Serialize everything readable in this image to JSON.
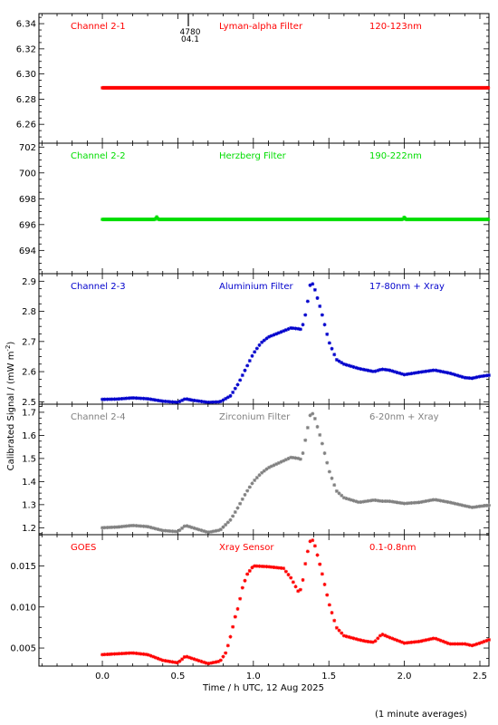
{
  "figure": {
    "xlabel": "Time / h UTC, 12 Aug 2025",
    "ylabel": "Calibrated Signal / (mW m",
    "ylabel_exp": "-2",
    "ylabel_close": ")",
    "note": "(1 minute averages)",
    "marker_number": "4780",
    "marker_time": "04.1"
  },
  "chart_data": [
    {
      "type": "scatter",
      "name": "Channel 2-1",
      "filter": "Lyman-alpha Filter",
      "band": "120-123nm",
      "color": "#ff0000",
      "xlim": [
        -0.42,
        2.56
      ],
      "ylim": [
        6.245,
        6.348
      ],
      "xticks": [
        0.0,
        0.5,
        1.0,
        1.5,
        2.0,
        2.5
      ],
      "xtick_labels": [
        "0.0",
        "0.5",
        "1.0",
        "1.5",
        "2.0",
        "2.5"
      ],
      "yticks": [
        6.26,
        6.28,
        6.3,
        6.32,
        6.34
      ],
      "ytick_labels": [
        "6.26",
        "6.28",
        "6.30",
        "6.32",
        "6.34"
      ],
      "points": [
        [
          0.0,
          6.289
        ],
        [
          2.56,
          6.289
        ]
      ]
    },
    {
      "type": "scatter",
      "name": "Channel 2-2",
      "filter": "Herzberg Filter",
      "band": "190-222nm",
      "color": "#00dd00",
      "xlim": [
        -0.42,
        2.56
      ],
      "ylim": [
        692.2,
        702.3
      ],
      "xticks": [
        0.0,
        0.5,
        1.0,
        1.5,
        2.0,
        2.5
      ],
      "xtick_labels": [
        "0.0",
        "0.5",
        "1.0",
        "1.5",
        "2.0",
        "2.5"
      ],
      "yticks": [
        694,
        696,
        698,
        700,
        702
      ],
      "ytick_labels": [
        "694",
        "696",
        "698",
        "700",
        "702"
      ],
      "points": [
        [
          0.0,
          696.4
        ],
        [
          0.35,
          696.4
        ],
        [
          0.36,
          696.6
        ],
        [
          0.37,
          696.4
        ],
        [
          1.99,
          696.4
        ],
        [
          2.0,
          696.6
        ],
        [
          2.01,
          696.4
        ],
        [
          2.56,
          696.4
        ]
      ]
    },
    {
      "type": "scatter",
      "name": "Channel 2-3",
      "filter": "Aluminium Filter",
      "band": "17-80nm + Xray",
      "color": "#0000cc",
      "xlim": [
        -0.42,
        2.56
      ],
      "ylim": [
        2.492,
        2.925
      ],
      "xticks": [
        0.0,
        0.5,
        1.0,
        1.5,
        2.0,
        2.5
      ],
      "xtick_labels": [
        "0.0",
        "0.5",
        "1.0",
        "1.5",
        "2.0",
        "2.5"
      ],
      "yticks": [
        2.5,
        2.6,
        2.7,
        2.8,
        2.9
      ],
      "ytick_labels": [
        "2.5",
        "2.6",
        "2.7",
        "2.8",
        "2.9"
      ],
      "points": [
        [
          0.0,
          2.508
        ],
        [
          0.1,
          2.509
        ],
        [
          0.2,
          2.513
        ],
        [
          0.3,
          2.51
        ],
        [
          0.4,
          2.502
        ],
        [
          0.5,
          2.498
        ],
        [
          0.55,
          2.51
        ],
        [
          0.6,
          2.505
        ],
        [
          0.7,
          2.498
        ],
        [
          0.78,
          2.5
        ],
        [
          0.85,
          2.52
        ],
        [
          0.9,
          2.56
        ],
        [
          0.95,
          2.61
        ],
        [
          1.0,
          2.66
        ],
        [
          1.05,
          2.695
        ],
        [
          1.1,
          2.715
        ],
        [
          1.2,
          2.735
        ],
        [
          1.25,
          2.745
        ],
        [
          1.3,
          2.742
        ],
        [
          1.32,
          2.74
        ],
        [
          1.35,
          2.8
        ],
        [
          1.38,
          2.9
        ],
        [
          1.4,
          2.885
        ],
        [
          1.45,
          2.8
        ],
        [
          1.5,
          2.7
        ],
        [
          1.55,
          2.64
        ],
        [
          1.6,
          2.625
        ],
        [
          1.7,
          2.61
        ],
        [
          1.8,
          2.6
        ],
        [
          1.85,
          2.608
        ],
        [
          1.9,
          2.605
        ],
        [
          2.0,
          2.59
        ],
        [
          2.1,
          2.598
        ],
        [
          2.2,
          2.605
        ],
        [
          2.3,
          2.595
        ],
        [
          2.4,
          2.58
        ],
        [
          2.45,
          2.578
        ],
        [
          2.5,
          2.584
        ],
        [
          2.56,
          2.588
        ]
      ]
    },
    {
      "type": "scatter",
      "name": "Channel 2-4",
      "filter": "Zirconium Filter",
      "band": "6-20nm + Xray",
      "color": "#808080",
      "xlim": [
        -0.42,
        2.56
      ],
      "ylim": [
        1.17,
        1.735
      ],
      "xticks": [
        0.0,
        0.5,
        1.0,
        1.5,
        2.0,
        2.5
      ],
      "xtick_labels": [
        "0.0",
        "0.5",
        "1.0",
        "1.5",
        "2.0",
        "2.5"
      ],
      "yticks": [
        1.2,
        1.3,
        1.4,
        1.5,
        1.6,
        1.7
      ],
      "ytick_labels": [
        "1.2",
        "1.3",
        "1.4",
        "1.5",
        "1.6",
        "1.7"
      ],
      "points": [
        [
          0.0,
          1.2
        ],
        [
          0.1,
          1.203
        ],
        [
          0.2,
          1.21
        ],
        [
          0.3,
          1.205
        ],
        [
          0.4,
          1.188
        ],
        [
          0.5,
          1.183
        ],
        [
          0.55,
          1.21
        ],
        [
          0.6,
          1.2
        ],
        [
          0.7,
          1.18
        ],
        [
          0.78,
          1.19
        ],
        [
          0.85,
          1.235
        ],
        [
          0.9,
          1.29
        ],
        [
          0.95,
          1.35
        ],
        [
          1.0,
          1.4
        ],
        [
          1.05,
          1.435
        ],
        [
          1.1,
          1.46
        ],
        [
          1.2,
          1.49
        ],
        [
          1.25,
          1.505
        ],
        [
          1.3,
          1.5
        ],
        [
          1.32,
          1.495
        ],
        [
          1.35,
          1.6
        ],
        [
          1.38,
          1.7
        ],
        [
          1.4,
          1.69
        ],
        [
          1.45,
          1.58
        ],
        [
          1.5,
          1.45
        ],
        [
          1.55,
          1.36
        ],
        [
          1.6,
          1.33
        ],
        [
          1.7,
          1.31
        ],
        [
          1.8,
          1.32
        ],
        [
          1.85,
          1.315
        ],
        [
          1.9,
          1.315
        ],
        [
          2.0,
          1.305
        ],
        [
          2.1,
          1.31
        ],
        [
          2.2,
          1.322
        ],
        [
          2.3,
          1.31
        ],
        [
          2.4,
          1.295
        ],
        [
          2.45,
          1.288
        ],
        [
          2.5,
          1.293
        ],
        [
          2.56,
          1.297
        ]
      ]
    },
    {
      "type": "scatter",
      "name": "GOES",
      "filter": "Xray Sensor",
      "band": "0.1-0.8nm",
      "color": "#ff0000",
      "xlim": [
        -0.42,
        2.56
      ],
      "ylim": [
        0.0028,
        0.0188
      ],
      "xticks": [
        0.0,
        0.5,
        1.0,
        1.5,
        2.0,
        2.5
      ],
      "xtick_labels": [
        "0.0",
        "0.5",
        "1.0",
        "1.5",
        "2.0",
        "2.5"
      ],
      "yticks": [
        0.005,
        0.01,
        0.015
      ],
      "ytick_labels": [
        "0.005",
        "0.010",
        "0.015"
      ],
      "points": [
        [
          0.0,
          0.0042
        ],
        [
          0.1,
          0.0043
        ],
        [
          0.2,
          0.0044
        ],
        [
          0.3,
          0.0042
        ],
        [
          0.4,
          0.0035
        ],
        [
          0.5,
          0.0032
        ],
        [
          0.55,
          0.004
        ],
        [
          0.6,
          0.0037
        ],
        [
          0.7,
          0.0031
        ],
        [
          0.78,
          0.0034
        ],
        [
          0.82,
          0.0045
        ],
        [
          0.85,
          0.0065
        ],
        [
          0.88,
          0.0088
        ],
        [
          0.9,
          0.01
        ],
        [
          0.93,
          0.0125
        ],
        [
          0.96,
          0.014
        ],
        [
          1.0,
          0.015
        ],
        [
          1.1,
          0.0149
        ],
        [
          1.2,
          0.0147
        ],
        [
          1.25,
          0.0135
        ],
        [
          1.3,
          0.0118
        ],
        [
          1.32,
          0.0123
        ],
        [
          1.35,
          0.016
        ],
        [
          1.38,
          0.0183
        ],
        [
          1.4,
          0.018
        ],
        [
          1.45,
          0.0145
        ],
        [
          1.5,
          0.0105
        ],
        [
          1.55,
          0.0075
        ],
        [
          1.6,
          0.0065
        ],
        [
          1.7,
          0.006
        ],
        [
          1.75,
          0.0058
        ],
        [
          1.8,
          0.0057
        ],
        [
          1.85,
          0.0067
        ],
        [
          1.9,
          0.0063
        ],
        [
          2.0,
          0.0056
        ],
        [
          2.1,
          0.0058
        ],
        [
          2.2,
          0.0062
        ],
        [
          2.3,
          0.0055
        ],
        [
          2.4,
          0.0055
        ],
        [
          2.45,
          0.0053
        ],
        [
          2.5,
          0.0056
        ],
        [
          2.56,
          0.006
        ]
      ]
    }
  ]
}
